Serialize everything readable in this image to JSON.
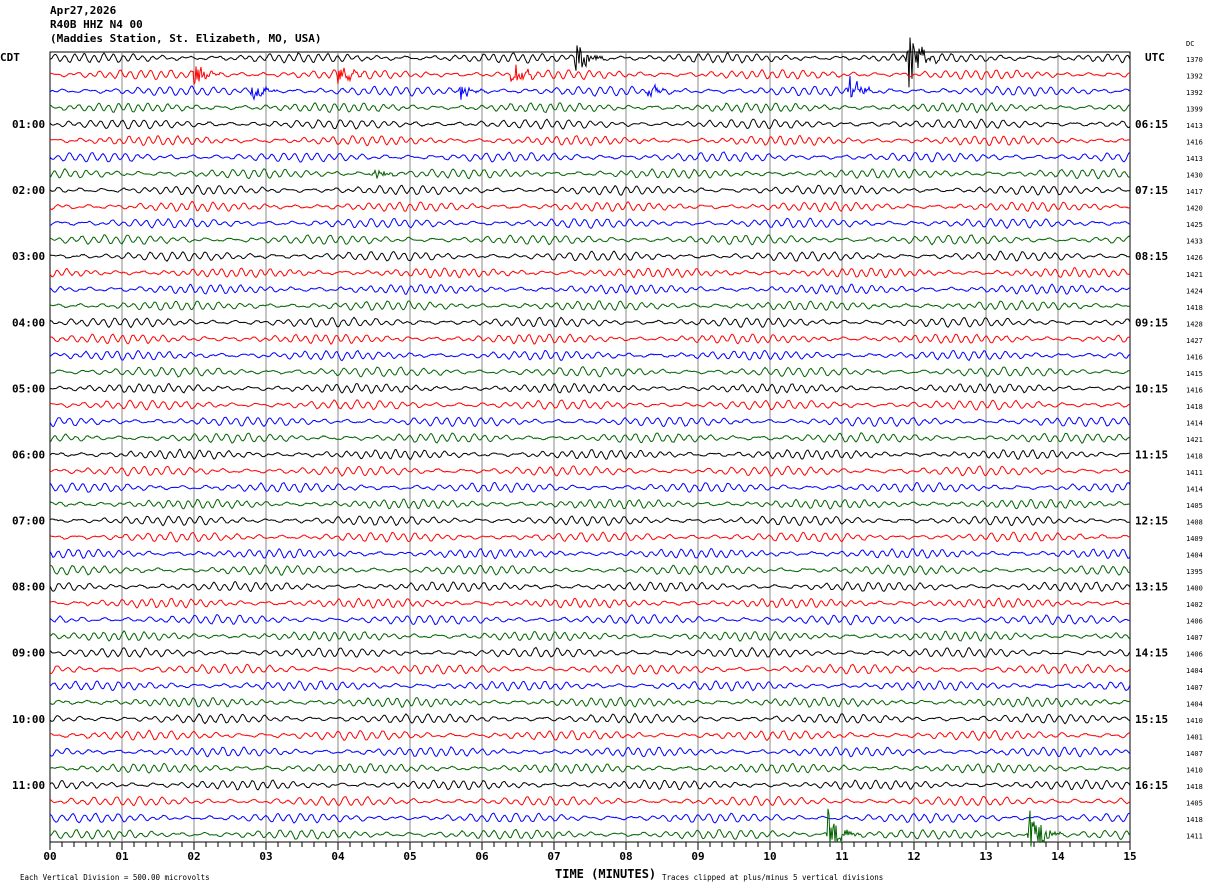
{
  "header": {
    "date": "Apr27,2026",
    "channel": "R40B HHZ N4 00",
    "station": "(Maddies Station, St. Elizabeth, MO, USA)"
  },
  "chart_data": {
    "type": "line",
    "subtype": "helicorder",
    "left_timezone": "CDT",
    "right_timezone": "UTC",
    "dc_header": "DC",
    "left_hour_labels": [
      "01:00",
      "02:00",
      "03:00",
      "04:00",
      "05:00",
      "06:00",
      "07:00",
      "08:00",
      "09:00",
      "10:00",
      "11:00"
    ],
    "right_hour_labels": [
      "06:15",
      "07:15",
      "08:15",
      "09:15",
      "10:15",
      "11:15",
      "12:15",
      "13:15",
      "14:15",
      "15:15",
      "16:15"
    ],
    "dc_values": [
      "1370",
      "1392",
      "1392",
      "1399",
      "1413",
      "1416",
      "1413",
      "1430",
      "1417",
      "1420",
      "1425",
      "1433",
      "1426",
      "1421",
      "1424",
      "1418",
      "1428",
      "1427",
      "1416",
      "1415",
      "1416",
      "1418",
      "1414",
      "1421",
      "1418",
      "1411",
      "1414",
      "1405",
      "1408",
      "1409",
      "1404",
      "1395",
      "1400",
      "1402",
      "1406",
      "1407",
      "1406",
      "1404",
      "1407",
      "1404",
      "1410",
      "1401",
      "1407",
      "1410",
      "1418",
      "1405",
      "1418",
      "1411"
    ],
    "x_ticks": [
      "00",
      "01",
      "02",
      "03",
      "04",
      "05",
      "06",
      "07",
      "08",
      "09",
      "10",
      "11",
      "12",
      "13",
      "14",
      "15"
    ],
    "xlim": [
      0,
      15
    ],
    "xlabel": "TIME (MINUTES)",
    "scale_note": "Each Vertical Division =  500.00 microvolts",
    "clip_note": "Traces clipped at plus/minus 5 vertical divisions",
    "trace_colors": [
      "#000000",
      "#ff0000",
      "#0000ff",
      "#006400"
    ],
    "grid": true,
    "events": [
      {
        "trace": 0,
        "minute": 7.3,
        "amp": 1.3
      },
      {
        "trace": 0,
        "minute": 11.9,
        "amp": 2.6
      },
      {
        "trace": 1,
        "minute": 2.0,
        "amp": 0.8
      },
      {
        "trace": 1,
        "minute": 4.0,
        "amp": 0.6
      },
      {
        "trace": 1,
        "minute": 6.4,
        "amp": 1.0
      },
      {
        "trace": 2,
        "minute": 2.8,
        "amp": 0.8
      },
      {
        "trace": 2,
        "minute": 5.7,
        "amp": 0.6
      },
      {
        "trace": 2,
        "minute": 8.3,
        "amp": 0.5
      },
      {
        "trace": 2,
        "minute": 11.1,
        "amp": 1.2
      },
      {
        "trace": 7,
        "minute": 4.5,
        "amp": 0.5
      },
      {
        "trace": 47,
        "minute": 10.8,
        "amp": 1.8
      },
      {
        "trace": 47,
        "minute": 13.6,
        "amp": 2.4
      }
    ]
  }
}
